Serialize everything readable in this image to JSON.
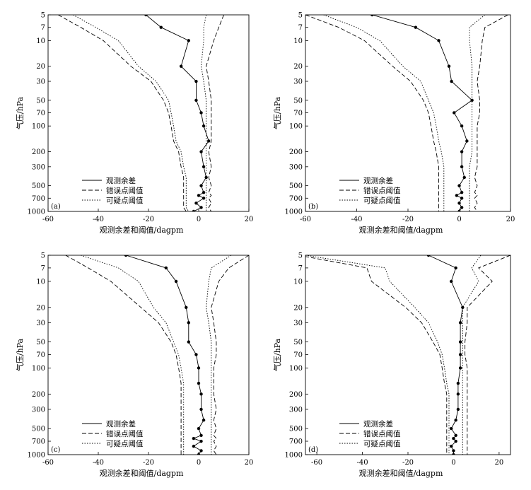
{
  "figure": {
    "ylabel": "气压/hPa",
    "xlabel": "观测余差和阈值/dagpm",
    "legend": [
      "观测余差",
      "错误点阈值",
      "可疑点阈值"
    ]
  },
  "chart_data": [
    {
      "type": "line",
      "panel_label": "(a)",
      "xlim": [
        -60,
        20
      ],
      "xticks": [
        -60,
        -40,
        -20,
        0,
        20
      ],
      "ylabel": "气压/hPa",
      "xlabel": "观测余差和阈值/dagpm",
      "yticks": [
        5,
        7,
        10,
        20,
        30,
        50,
        70,
        100,
        200,
        300,
        500,
        700,
        1000
      ],
      "y_scale": "log",
      "legend_position": "bottom-left",
      "series": [
        {
          "name": "观测余差",
          "style": "solid-markers",
          "x": [
            -21,
            -15,
            -4,
            -7,
            -1,
            -1,
            1,
            2,
            4,
            1,
            2,
            3,
            1,
            2,
            0,
            2,
            -1,
            1,
            -2
          ],
          "y": [
            5,
            7,
            10,
            20,
            30,
            50,
            70,
            100,
            150,
            200,
            300,
            400,
            500,
            600,
            650,
            700,
            800,
            900,
            1000
          ]
        },
        {
          "name": "错误点阈值",
          "style": "dashed",
          "x": [
            -56,
            -47,
            -38,
            -27,
            -19,
            -14,
            -12,
            -11,
            -10,
            -8,
            -7,
            -6,
            -6,
            -6,
            -6,
            -6,
            -6,
            -6,
            -5
          ],
          "y": [
            5,
            7,
            10,
            20,
            30,
            50,
            70,
            100,
            150,
            200,
            300,
            400,
            500,
            600,
            650,
            700,
            800,
            900,
            1000
          ]
        },
        {
          "name": "可疑点阈值",
          "style": "dotted",
          "x": [
            -50,
            -41,
            -32,
            -24,
            -17,
            -12,
            -11,
            -10,
            -9,
            -7,
            -6,
            -5,
            -5,
            -5,
            -5,
            -5,
            -5,
            -5,
            -4
          ],
          "y": [
            5,
            7,
            10,
            20,
            30,
            50,
            70,
            100,
            150,
            200,
            300,
            400,
            500,
            600,
            650,
            700,
            800,
            900,
            1000
          ]
        },
        {
          "name": "错误点阈值",
          "style": "dashed",
          "x": [
            10,
            8,
            6,
            3,
            4,
            5,
            5,
            5,
            5,
            4,
            5,
            4,
            5,
            4,
            5,
            4,
            5,
            4,
            5
          ],
          "y": [
            5,
            7,
            10,
            20,
            30,
            50,
            70,
            100,
            150,
            200,
            300,
            400,
            500,
            600,
            650,
            700,
            800,
            900,
            1000
          ]
        },
        {
          "name": "可疑点阈值",
          "style": "dotted",
          "x": [
            3,
            2,
            2,
            1,
            2,
            3,
            3,
            3,
            3,
            3,
            3,
            3,
            3,
            3,
            3,
            3,
            3,
            3,
            3
          ],
          "y": [
            5,
            7,
            10,
            20,
            30,
            50,
            70,
            100,
            150,
            200,
            300,
            400,
            500,
            600,
            650,
            700,
            800,
            900,
            1000
          ]
        }
      ]
    },
    {
      "type": "line",
      "panel_label": "(b)",
      "xlim": [
        -60,
        20
      ],
      "xticks": [
        -60,
        -40,
        -20,
        0,
        20
      ],
      "ylabel": "气压/hPa",
      "xlabel": "观测余差和阈值/dagpm",
      "yticks": [
        5,
        7,
        10,
        20,
        30,
        50,
        70,
        100,
        200,
        300,
        500,
        700,
        1000
      ],
      "y_scale": "log",
      "legend_position": "bottom-left",
      "series": [
        {
          "name": "观测余差",
          "style": "solid-markers",
          "x": [
            -34,
            -17,
            -8,
            -4,
            -3,
            5,
            -2,
            1,
            3,
            1,
            1,
            2,
            0,
            1,
            -1,
            1,
            0,
            1,
            0
          ],
          "y": [
            5,
            7,
            10,
            20,
            30,
            50,
            70,
            100,
            150,
            200,
            300,
            400,
            500,
            600,
            650,
            700,
            800,
            900,
            1000
          ]
        },
        {
          "name": "错误点阈值",
          "style": "dashed",
          "x": [
            -60,
            -47,
            -37,
            -26,
            -19,
            -14,
            -12,
            -11,
            -10,
            -9,
            -8,
            -8,
            -8,
            -8,
            -8,
            -8,
            -8,
            -8,
            -8
          ],
          "y": [
            5,
            7,
            10,
            20,
            30,
            50,
            70,
            100,
            150,
            200,
            300,
            400,
            500,
            600,
            650,
            700,
            800,
            900,
            1000
          ]
        },
        {
          "name": "可疑点阈值",
          "style": "dotted",
          "x": [
            -53,
            -40,
            -31,
            -22,
            -15,
            -12,
            -10,
            -9,
            -8,
            -7,
            -6,
            -6,
            -6,
            -6,
            -6,
            -6,
            -6,
            -6,
            -6
          ],
          "y": [
            5,
            7,
            10,
            20,
            30,
            50,
            70,
            100,
            150,
            200,
            300,
            400,
            500,
            600,
            650,
            700,
            800,
            900,
            1000
          ]
        },
        {
          "name": "错误点阈值",
          "style": "dashed",
          "x": [
            19,
            10,
            9,
            8,
            7,
            8,
            8,
            7,
            7,
            7,
            7,
            6,
            7,
            6,
            7,
            6,
            7,
            6,
            7
          ],
          "y": [
            5,
            7,
            10,
            20,
            30,
            50,
            70,
            100,
            150,
            200,
            300,
            400,
            500,
            600,
            650,
            700,
            800,
            900,
            1000
          ]
        },
        {
          "name": "可疑点阈值",
          "style": "dotted",
          "x": [
            10,
            4,
            4,
            5,
            5,
            5,
            5,
            5,
            5,
            5,
            4,
            4,
            4,
            4,
            4,
            4,
            4,
            4,
            4
          ],
          "y": [
            5,
            7,
            10,
            20,
            30,
            50,
            70,
            100,
            150,
            200,
            300,
            400,
            500,
            600,
            650,
            700,
            800,
            900,
            1000
          ]
        }
      ]
    },
    {
      "type": "line",
      "panel_label": "(c)",
      "xlim": [
        -60,
        20
      ],
      "xticks": [
        -60,
        -40,
        -20,
        0,
        20
      ],
      "ylabel": "气压/hPa",
      "xlabel": "观测余差和阈值/dagpm",
      "yticks": [
        5,
        7,
        10,
        20,
        30,
        50,
        70,
        100,
        200,
        300,
        500,
        700,
        1000
      ],
      "y_scale": "log",
      "legend_position": "bottom-left",
      "series": [
        {
          "name": "观测余差",
          "style": "solid-markers",
          "x": [
            -29,
            -13,
            -9,
            -5,
            -4,
            -4,
            -1,
            0,
            0,
            1,
            1,
            2,
            0,
            1,
            -2,
            1,
            -2,
            1,
            0
          ],
          "y": [
            5,
            7,
            10,
            20,
            30,
            50,
            70,
            100,
            150,
            200,
            300,
            400,
            500,
            600,
            650,
            700,
            800,
            900,
            1000
          ]
        },
        {
          "name": "错误点阈值",
          "style": "dashed",
          "x": [
            -53,
            -44,
            -35,
            -23,
            -16,
            -11,
            -9,
            -8,
            -7,
            -7,
            -7,
            -7,
            -7,
            -7,
            -7,
            -7,
            -7,
            -7,
            -7
          ],
          "y": [
            5,
            7,
            10,
            20,
            30,
            50,
            70,
            100,
            150,
            200,
            300,
            400,
            500,
            600,
            650,
            700,
            800,
            900,
            1000
          ]
        },
        {
          "name": "可疑点阈值",
          "style": "dotted",
          "x": [
            -47,
            -32,
            -24,
            -18,
            -13,
            -10,
            -8,
            -7,
            -6,
            -6,
            -6,
            -6,
            -6,
            -6,
            -6,
            -6,
            -6,
            -6,
            -6
          ],
          "y": [
            5,
            7,
            10,
            20,
            30,
            50,
            70,
            100,
            150,
            200,
            300,
            400,
            500,
            600,
            650,
            700,
            800,
            900,
            1000
          ]
        },
        {
          "name": "错误点阈值",
          "style": "dashed",
          "x": [
            20,
            12,
            8,
            5,
            6,
            7,
            7,
            6,
            6,
            6,
            7,
            6,
            7,
            6,
            7,
            6,
            7,
            6,
            7
          ],
          "y": [
            5,
            7,
            10,
            20,
            30,
            50,
            70,
            100,
            150,
            200,
            300,
            400,
            500,
            600,
            650,
            700,
            800,
            900,
            1000
          ]
        },
        {
          "name": "可疑点阈值",
          "style": "dotted",
          "x": [
            13,
            5,
            4,
            3,
            4,
            5,
            5,
            5,
            5,
            5,
            5,
            5,
            5,
            5,
            5,
            5,
            5,
            5,
            5
          ],
          "y": [
            5,
            7,
            10,
            20,
            30,
            50,
            70,
            100,
            150,
            200,
            300,
            400,
            500,
            600,
            650,
            700,
            800,
            900,
            1000
          ]
        }
      ]
    },
    {
      "type": "line",
      "panel_label": "(d)",
      "xlim": [
        -65,
        25
      ],
      "xticks": [
        -60,
        -40,
        -20,
        0,
        20
      ],
      "ylabel": "气压/hPa",
      "xlabel": "观测余差和阈值/dagpm",
      "yticks": [
        5,
        7,
        10,
        20,
        30,
        50,
        70,
        100,
        200,
        300,
        500,
        700,
        1000
      ],
      "y_scale": "log",
      "legend_position": "bottom-left",
      "series": [
        {
          "name": "观测余差",
          "style": "solid-markers",
          "x": [
            -11,
            1,
            -1,
            4,
            3,
            3,
            3,
            3,
            2,
            2,
            2,
            1,
            -1,
            1,
            0,
            1,
            -1,
            0,
            0
          ],
          "y": [
            5,
            7,
            10,
            20,
            30,
            50,
            70,
            100,
            150,
            200,
            300,
            400,
            500,
            600,
            650,
            700,
            800,
            900,
            1000
          ]
        },
        {
          "name": "错误点阈值",
          "style": "dashed",
          "x": [
            -68,
            -38,
            -36,
            -21,
            -14,
            -9,
            -6,
            -5,
            -4,
            -3,
            -3,
            -3,
            -3,
            -3,
            -3,
            -3,
            -3,
            -3,
            -3
          ],
          "y": [
            5,
            7,
            10,
            20,
            30,
            50,
            70,
            100,
            150,
            200,
            300,
            400,
            500,
            600,
            650,
            700,
            800,
            900,
            1000
          ]
        },
        {
          "name": "可疑点阈值",
          "style": "dotted",
          "x": [
            -65,
            -30,
            -28,
            -17,
            -11,
            -7,
            -5,
            -4,
            -3,
            -2,
            -2,
            -2,
            -2,
            -2,
            -2,
            -2,
            -2,
            -2,
            -2
          ],
          "y": [
            5,
            7,
            10,
            20,
            30,
            50,
            70,
            100,
            150,
            200,
            300,
            400,
            500,
            600,
            650,
            700,
            800,
            900,
            1000
          ]
        },
        {
          "name": "错误点阈值",
          "style": "dashed",
          "x": [
            25,
            11,
            17,
            6,
            6,
            5,
            5,
            6,
            6,
            6,
            6,
            6,
            6,
            6,
            6,
            6,
            6,
            6,
            6
          ],
          "y": [
            5,
            7,
            10,
            20,
            30,
            50,
            70,
            100,
            150,
            200,
            300,
            400,
            500,
            600,
            650,
            700,
            800,
            900,
            1000
          ]
        },
        {
          "name": "可疑点阈值",
          "style": "dotted",
          "x": [
            12,
            8,
            11,
            4,
            4,
            4,
            4,
            4,
            4,
            4,
            4,
            4,
            4,
            4,
            4,
            4,
            4,
            4,
            4
          ],
          "y": [
            5,
            7,
            10,
            20,
            30,
            50,
            70,
            100,
            150,
            200,
            300,
            400,
            500,
            600,
            650,
            700,
            800,
            900,
            1000
          ]
        }
      ]
    }
  ]
}
